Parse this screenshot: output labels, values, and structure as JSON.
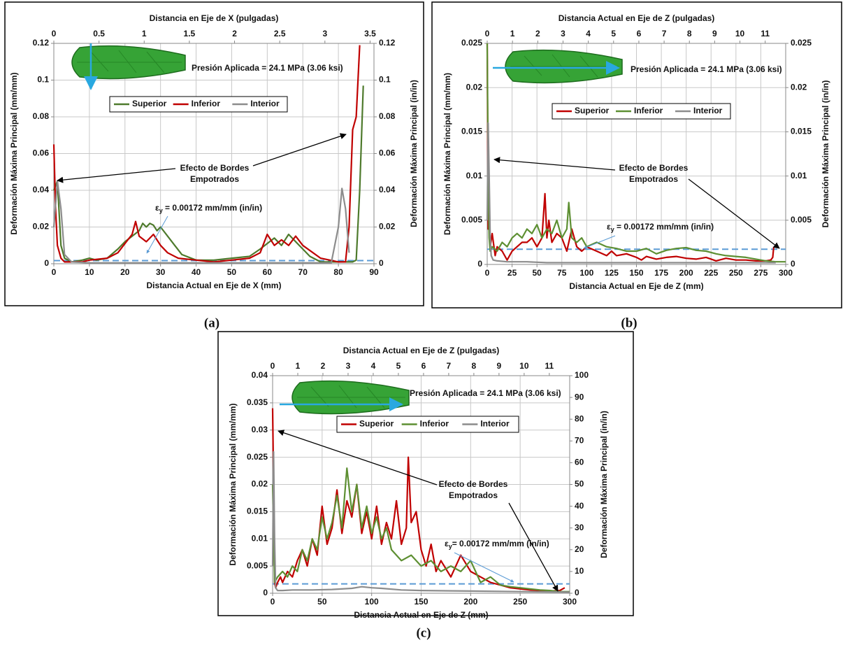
{
  "chart_data": [
    {
      "type": "line",
      "panel": "(a)",
      "x_label": "Distancia Actual en Eje de X (mm)",
      "x2_label": "Distancia en Eje de X (pulgadas)",
      "y_label": "Deformación Máxima Principal (mm/mm)",
      "y2_label": "Deformación Máxima Principal (in/in)",
      "xlim": [
        0,
        90
      ],
      "xticks": [
        0,
        10,
        20,
        30,
        40,
        50,
        60,
        70,
        80,
        90
      ],
      "x2lim": [
        0,
        3.543
      ],
      "x2ticks": [
        0,
        0.5,
        1,
        1.5,
        2,
        2.5,
        3,
        3.5
      ],
      "ylim": [
        0,
        0.12
      ],
      "yticks": [
        0,
        0.02,
        0.04,
        0.06,
        0.08,
        0.1,
        0.12
      ],
      "y2lim": [
        0,
        0.12
      ],
      "y2ticks": [
        0,
        0.02,
        0.04,
        0.06,
        0.08,
        0.1,
        0.12
      ],
      "grid": true,
      "annotations": {
        "pressure": "Presión Aplicada = 24.1 MPa (3.06 ksi)",
        "edge_effect": [
          "Efecto de Bordes",
          "Empotrados"
        ],
        "yield": {
          "symbol": "ε",
          "subscript": "y",
          "text": " = 0.00172 mm/mm (in/in)"
        }
      },
      "yield_strain": 0.00172,
      "series": [
        {
          "name": "Superior",
          "color": "#4e7a2c",
          "x": [
            0,
            1,
            2,
            3,
            5,
            8,
            10,
            12,
            15,
            18,
            20,
            22,
            24,
            25,
            26,
            27,
            28,
            29,
            30,
            32,
            34,
            36,
            40,
            45,
            50,
            55,
            58,
            60,
            62,
            64,
            66,
            68,
            70,
            72,
            75,
            80,
            84,
            85,
            86,
            87
          ],
          "values": [
            0.04,
            0.045,
            0.01,
            0.003,
            0.001,
            0.002,
            0.003,
            0.002,
            0.003,
            0.008,
            0.012,
            0.015,
            0.018,
            0.022,
            0.02,
            0.022,
            0.021,
            0.018,
            0.02,
            0.015,
            0.01,
            0.005,
            0.002,
            0.002,
            0.003,
            0.004,
            0.008,
            0.011,
            0.014,
            0.01,
            0.016,
            0.012,
            0.008,
            0.004,
            0.001,
            0.001,
            0.001,
            0.002,
            0.04,
            0.097
          ]
        },
        {
          "name": "Inferior",
          "color": "#c00000",
          "x": [
            0,
            0.5,
            1,
            2,
            3,
            5,
            8,
            10,
            15,
            18,
            20,
            22,
            23,
            24,
            26,
            28,
            30,
            32,
            35,
            40,
            45,
            50,
            55,
            58,
            60,
            62,
            64,
            66,
            68,
            70,
            75,
            80,
            82,
            83,
            84,
            85,
            86
          ],
          "values": [
            0.065,
            0.03,
            0.01,
            0.003,
            0.001,
            0.001,
            0.001,
            0.002,
            0.003,
            0.006,
            0.011,
            0.016,
            0.023,
            0.015,
            0.012,
            0.016,
            0.01,
            0.006,
            0.003,
            0.002,
            0.001,
            0.002,
            0.003,
            0.006,
            0.016,
            0.01,
            0.013,
            0.01,
            0.015,
            0.01,
            0.003,
            0.001,
            0.001,
            0.02,
            0.073,
            0.08,
            0.119
          ]
        },
        {
          "name": "Interior",
          "color": "#8c8c8c",
          "x": [
            0,
            1,
            2,
            3,
            5,
            10,
            20,
            30,
            40,
            50,
            60,
            70,
            78,
            80,
            81,
            82,
            83
          ],
          "values": [
            0.02,
            0.045,
            0.03,
            0.005,
            0.001,
            0.0005,
            0.0005,
            0.0005,
            0.0005,
            0.0005,
            0.0005,
            0.0005,
            0.0005,
            0.02,
            0.041,
            0.03,
            0.006
          ]
        }
      ]
    },
    {
      "type": "line",
      "panel": "(b)",
      "x_label": "Distancia Actual en Eje de Z (mm)",
      "x2_label": "Distancia Actual en Eje de Z (pulgadas)",
      "y_label": "Deformación Máxima Principal (mm/mm)",
      "y2_label": "Deformación Máxima Principal (in/in)",
      "xlim": [
        0,
        300
      ],
      "xticks": [
        0,
        25,
        50,
        75,
        100,
        125,
        150,
        175,
        200,
        225,
        250,
        275,
        300
      ],
      "x2lim": [
        0,
        11.81
      ],
      "x2ticks": [
        0,
        1,
        2,
        3,
        4,
        5,
        6,
        7,
        8,
        9,
        10,
        11
      ],
      "ylim": [
        0,
        0.025
      ],
      "yticks": [
        0,
        0.005,
        0.01,
        0.015,
        0.02,
        0.025
      ],
      "y2lim": [
        0,
        0.025
      ],
      "y2ticks": [
        0,
        0.005,
        0.01,
        0.015,
        0.02,
        0.025
      ],
      "grid": true,
      "annotations": {
        "pressure": "Presión Aplicada = 24.1 MPa (3.06 ksi)",
        "edge_effect": [
          "Efecto de Bordes",
          "Empotrados"
        ],
        "yield": {
          "symbol": "ε",
          "subscript": "y",
          "text": " = 0.00172 mm/mm (in/in)"
        }
      },
      "yield_strain": 0.00172,
      "series": [
        {
          "name": "Superior",
          "color": "#c00000",
          "x": [
            0,
            1,
            2,
            3,
            5,
            8,
            10,
            15,
            20,
            25,
            30,
            35,
            40,
            45,
            50,
            55,
            58,
            60,
            62,
            65,
            70,
            75,
            80,
            85,
            90,
            95,
            100,
            110,
            120,
            125,
            130,
            140,
            150,
            155,
            160,
            170,
            180,
            190,
            200,
            210,
            220,
            230,
            240,
            250,
            260,
            270,
            280,
            285,
            287,
            288
          ],
          "values": [
            0.025,
            0.004,
            0.0045,
            0.002,
            0.0035,
            0.001,
            0.002,
            0.0015,
            0.0005,
            0.0015,
            0.002,
            0.0025,
            0.0025,
            0.003,
            0.002,
            0.003,
            0.008,
            0.003,
            0.005,
            0.0025,
            0.0035,
            0.003,
            0.0015,
            0.004,
            0.002,
            0.0015,
            0.002,
            0.0015,
            0.001,
            0.0015,
            0.001,
            0.0012,
            0.0008,
            0.0005,
            0.0009,
            0.0006,
            0.0008,
            0.0009,
            0.0007,
            0.0006,
            0.0008,
            0.0004,
            0.0007,
            0.0005,
            0.0005,
            0.0004,
            0.0004,
            0.0005,
            0.0008,
            0.002
          ]
        },
        {
          "name": "Inferior",
          "color": "#5d8f32",
          "x": [
            0,
            1,
            2,
            3,
            5,
            10,
            15,
            20,
            25,
            30,
            35,
            40,
            45,
            50,
            55,
            60,
            65,
            70,
            75,
            80,
            82,
            85,
            90,
            95,
            100,
            110,
            120,
            130,
            140,
            150,
            160,
            170,
            180,
            190,
            200,
            210,
            220,
            230,
            240,
            250,
            260,
            270,
            280,
            290,
            300
          ],
          "values": [
            0.025,
            0.01,
            0.003,
            0.0015,
            0.002,
            0.0015,
            0.0025,
            0.002,
            0.003,
            0.0035,
            0.003,
            0.004,
            0.0035,
            0.0045,
            0.003,
            0.004,
            0.0035,
            0.005,
            0.003,
            0.004,
            0.007,
            0.003,
            0.0025,
            0.003,
            0.002,
            0.0025,
            0.002,
            0.0018,
            0.0015,
            0.0015,
            0.0018,
            0.0012,
            0.0016,
            0.0018,
            0.0019,
            0.0016,
            0.0015,
            0.0012,
            0.001,
            0.0009,
            0.0008,
            0.0006,
            0.0004,
            0.0003,
            0.0003
          ]
        },
        {
          "name": "Interior",
          "color": "#8c8c8c",
          "x": [
            0,
            1,
            2,
            3,
            4,
            6,
            10,
            20,
            40,
            60,
            80,
            100,
            150,
            200,
            250,
            290
          ],
          "values": [
            0.005,
            0.016,
            0.01,
            0.003,
            0.001,
            0.0005,
            0.0004,
            0.0003,
            0.0003,
            0.0002,
            0.0002,
            0.0002,
            0.0002,
            0.0002,
            0.0002,
            0.0002
          ]
        }
      ]
    },
    {
      "type": "line",
      "panel": "(c)",
      "x_label": "Distancia Actual en Eje de Z (mm)",
      "x2_label": "Distancia Actual en Eje de Z (pulgadas)",
      "y_label": "Deformación Máxima Principal (mm/mm)",
      "y2_label": "Deformación Máxima Principal (in/in)",
      "xlim": [
        0,
        300
      ],
      "xticks": [
        0,
        50,
        100,
        150,
        200,
        250,
        300
      ],
      "x2lim": [
        0,
        11.81
      ],
      "x2ticks": [
        0,
        1,
        2,
        3,
        4,
        5,
        6,
        7,
        8,
        9,
        10,
        11
      ],
      "ylim": [
        0,
        0.04
      ],
      "yticks": [
        0,
        0.005,
        0.01,
        0.015,
        0.02,
        0.025,
        0.03,
        0.035,
        0.04
      ],
      "y2lim": [
        0,
        100
      ],
      "y2ticks": [
        0,
        10,
        20,
        30,
        40,
        50,
        60,
        70,
        80,
        90,
        100
      ],
      "grid": true,
      "annotations": {
        "pressure": "Presión Aplicada = 24.1 MPa (3.06 ksi)",
        "edge_effect": [
          "Efecto de Bordes",
          "Empotrados"
        ],
        "yield": {
          "symbol": "ε",
          "subscript": "y",
          "text": "= 0.00172 mm/mm (in/in)"
        }
      },
      "yield_strain": 0.00172,
      "series": [
        {
          "name": "Superior",
          "color": "#c00000",
          "x": [
            0,
            1,
            2,
            3,
            5,
            8,
            10,
            15,
            20,
            25,
            30,
            35,
            40,
            45,
            50,
            55,
            60,
            65,
            70,
            75,
            80,
            85,
            90,
            95,
            100,
            105,
            110,
            115,
            120,
            125,
            130,
            135,
            137,
            140,
            145,
            150,
            155,
            160,
            165,
            170,
            180,
            190,
            200,
            210,
            220,
            230,
            240,
            250,
            260,
            270,
            280,
            290,
            295
          ],
          "values": [
            0.034,
            0.02,
            0.002,
            0.001,
            0.002,
            0.003,
            0.002,
            0.004,
            0.003,
            0.006,
            0.008,
            0.005,
            0.01,
            0.007,
            0.016,
            0.009,
            0.012,
            0.019,
            0.011,
            0.017,
            0.014,
            0.02,
            0.011,
            0.015,
            0.01,
            0.016,
            0.009,
            0.013,
            0.01,
            0.017,
            0.009,
            0.012,
            0.025,
            0.013,
            0.015,
            0.008,
            0.005,
            0.009,
            0.004,
            0.006,
            0.003,
            0.007,
            0.004,
            0.003,
            0.002,
            0.0015,
            0.001,
            0.0008,
            0.0006,
            0.0005,
            0.0004,
            0.0005,
            0.001
          ]
        },
        {
          "name": "Inferior",
          "color": "#5d8f32",
          "x": [
            0,
            2,
            5,
            10,
            15,
            20,
            25,
            30,
            35,
            40,
            45,
            50,
            55,
            60,
            65,
            70,
            75,
            80,
            85,
            90,
            95,
            100,
            105,
            110,
            115,
            120,
            130,
            140,
            150,
            160,
            170,
            180,
            190,
            200,
            210,
            220,
            230,
            240,
            250,
            260,
            270,
            280,
            290,
            300
          ],
          "values": [
            0.02,
            0.002,
            0.003,
            0.004,
            0.003,
            0.005,
            0.004,
            0.008,
            0.006,
            0.01,
            0.008,
            0.014,
            0.01,
            0.013,
            0.018,
            0.012,
            0.023,
            0.015,
            0.02,
            0.012,
            0.016,
            0.011,
            0.014,
            0.01,
            0.012,
            0.008,
            0.006,
            0.007,
            0.005,
            0.006,
            0.004,
            0.005,
            0.004,
            0.006,
            0.002,
            0.003,
            0.0015,
            0.0012,
            0.001,
            0.0008,
            0.0006,
            0.0005,
            0.0003,
            0.0003
          ]
        },
        {
          "name": "Interior",
          "color": "#8c8c8c",
          "x": [
            0,
            1,
            2,
            3,
            5,
            10,
            20,
            40,
            60,
            80,
            90,
            100,
            110,
            130,
            150,
            200,
            250,
            300
          ],
          "values": [
            0.005,
            0.026,
            0.01,
            0.001,
            0.0005,
            0.0005,
            0.0006,
            0.0006,
            0.0007,
            0.0009,
            0.0012,
            0.001,
            0.0009,
            0.0006,
            0.0005,
            0.0004,
            0.0003,
            0.0002
          ]
        }
      ]
    }
  ]
}
